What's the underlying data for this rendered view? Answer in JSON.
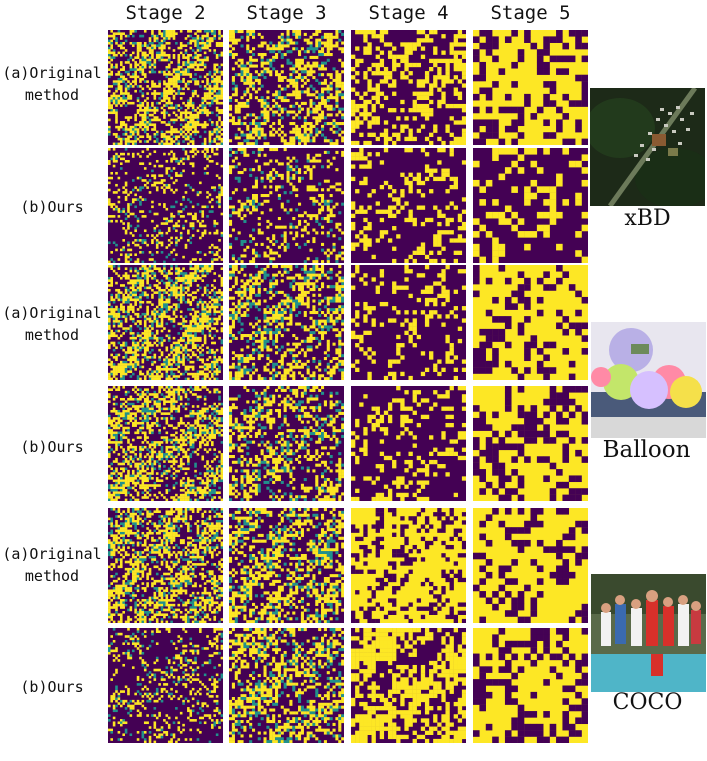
{
  "stages": [
    "Stage 2",
    "Stage 3",
    "Stage 4",
    "Stage 5"
  ],
  "rows": [
    {
      "label_line1": "(a)Original",
      "label_line2": "method"
    },
    {
      "label_line1": "(b)Ours",
      "label_line2": ""
    },
    {
      "label_line1": "(a)Original",
      "label_line2": "method"
    },
    {
      "label_line1": "(b)Ours",
      "label_line2": ""
    },
    {
      "label_line1": "(a)Original",
      "label_line2": "method"
    },
    {
      "label_line1": "(b)Ours",
      "label_line2": ""
    }
  ],
  "datasets": [
    {
      "name": "xBD",
      "icon": "aerial-photo-icon"
    },
    {
      "name": "Balloon",
      "icon": "balloon-photo-icon"
    },
    {
      "name": "COCO",
      "icon": "group-photo-icon"
    }
  ],
  "colors": {
    "low": "#440154",
    "mid": "#21918c",
    "high": "#fde725"
  }
}
